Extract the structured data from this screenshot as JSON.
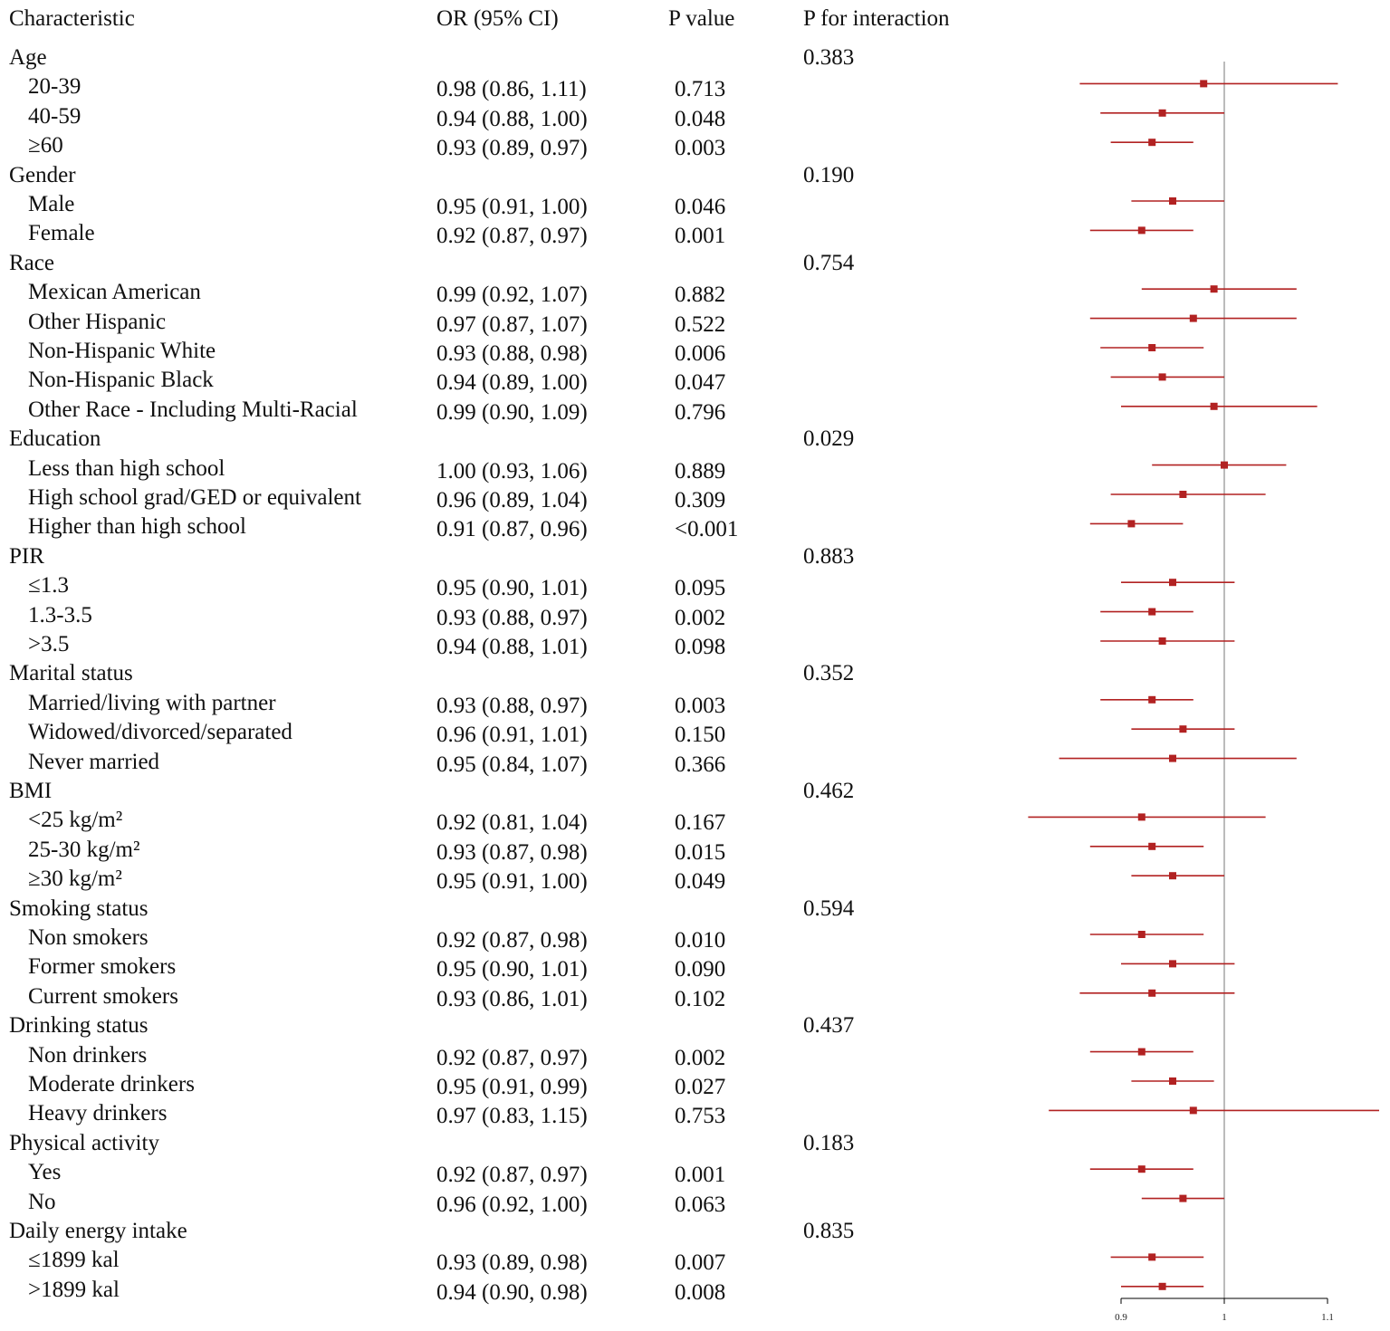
{
  "headers": {
    "characteristic": "Characteristic",
    "or_ci": "OR (95% CI)",
    "p_value": "P value",
    "p_interaction": "P for interaction"
  },
  "colors": {
    "marker": "#B22222",
    "refline": "#BBBBBB",
    "axis": "#000000"
  },
  "chart_data": {
    "type": "forest",
    "title": "",
    "xlabel": "",
    "ylabel": "",
    "xlim": [
      0.9,
      1.1
    ],
    "xticks": [
      "0.9",
      "1",
      "1.1"
    ],
    "reference_line": 1,
    "rows": [
      {
        "type": "group",
        "label": "Age",
        "p_interaction": "0.383"
      },
      {
        "type": "item",
        "label": "20-39",
        "or_text": "0.98 (0.86, 1.11)",
        "p_text": "0.713",
        "or": 0.98,
        "lo": 0.86,
        "hi": 1.11
      },
      {
        "type": "item",
        "label": "40-59",
        "or_text": "0.94 (0.88, 1.00)",
        "p_text": "0.048",
        "or": 0.94,
        "lo": 0.88,
        "hi": 1.0
      },
      {
        "type": "item",
        "label": "≥60",
        "or_text": "0.93 (0.89, 0.97)",
        "p_text": "0.003",
        "or": 0.93,
        "lo": 0.89,
        "hi": 0.97
      },
      {
        "type": "group",
        "label": "Gender",
        "p_interaction": "0.190"
      },
      {
        "type": "item",
        "label": "Male",
        "or_text": "0.95 (0.91, 1.00)",
        "p_text": "0.046",
        "or": 0.95,
        "lo": 0.91,
        "hi": 1.0
      },
      {
        "type": "item",
        "label": "Female",
        "or_text": "0.92 (0.87, 0.97)",
        "p_text": "0.001",
        "or": 0.92,
        "lo": 0.87,
        "hi": 0.97
      },
      {
        "type": "group",
        "label": "Race",
        "p_interaction": "0.754"
      },
      {
        "type": "item",
        "label": "Mexican American",
        "or_text": "0.99 (0.92, 1.07)",
        "p_text": "0.882",
        "or": 0.99,
        "lo": 0.92,
        "hi": 1.07
      },
      {
        "type": "item",
        "label": "Other Hispanic",
        "or_text": "0.97 (0.87, 1.07)",
        "p_text": "0.522",
        "or": 0.97,
        "lo": 0.87,
        "hi": 1.07
      },
      {
        "type": "item",
        "label": "Non-Hispanic White",
        "or_text": "0.93 (0.88, 0.98)",
        "p_text": "0.006",
        "or": 0.93,
        "lo": 0.88,
        "hi": 0.98
      },
      {
        "type": "item",
        "label": "Non-Hispanic Black",
        "or_text": "0.94 (0.89, 1.00)",
        "p_text": "0.047",
        "or": 0.94,
        "lo": 0.89,
        "hi": 1.0
      },
      {
        "type": "item",
        "label": "Other Race - Including Multi-Racial",
        "or_text": "0.99 (0.90, 1.09)",
        "p_text": "0.796",
        "or": 0.99,
        "lo": 0.9,
        "hi": 1.09
      },
      {
        "type": "group",
        "label": "Education",
        "p_interaction": "0.029"
      },
      {
        "type": "item",
        "label": "Less than high school",
        "or_text": "1.00 (0.93, 1.06)",
        "p_text": "0.889",
        "or": 1.0,
        "lo": 0.93,
        "hi": 1.06
      },
      {
        "type": "item",
        "label": "High school grad/GED or equivalent",
        "or_text": "0.96 (0.89, 1.04)",
        "p_text": "0.309",
        "or": 0.96,
        "lo": 0.89,
        "hi": 1.04
      },
      {
        "type": "item",
        "label": "Higher than high school",
        "or_text": "0.91 (0.87, 0.96)",
        "p_text": "<0.001",
        "or": 0.91,
        "lo": 0.87,
        "hi": 0.96
      },
      {
        "type": "group",
        "label": "PIR",
        "p_interaction": "0.883"
      },
      {
        "type": "item",
        "label": "≤1.3",
        "or_text": "0.95 (0.90, 1.01)",
        "p_text": "0.095",
        "or": 0.95,
        "lo": 0.9,
        "hi": 1.01
      },
      {
        "type": "item",
        "label": "1.3-3.5",
        "or_text": "0.93 (0.88, 0.97)",
        "p_text": "0.002",
        "or": 0.93,
        "lo": 0.88,
        "hi": 0.97
      },
      {
        "type": "item",
        "label": ">3.5",
        "or_text": "0.94 (0.88, 1.01)",
        "p_text": "0.098",
        "or": 0.94,
        "lo": 0.88,
        "hi": 1.01
      },
      {
        "type": "group",
        "label": "Marital status",
        "p_interaction": "0.352"
      },
      {
        "type": "item",
        "label": "Married/living with partner",
        "or_text": "0.93 (0.88, 0.97)",
        "p_text": "0.003",
        "or": 0.93,
        "lo": 0.88,
        "hi": 0.97
      },
      {
        "type": "item",
        "label": "Widowed/divorced/separated",
        "or_text": "0.96 (0.91, 1.01)",
        "p_text": "0.150",
        "or": 0.96,
        "lo": 0.91,
        "hi": 1.01
      },
      {
        "type": "item",
        "label": "Never married",
        "or_text": "0.95 (0.84, 1.07)",
        "p_text": "0.366",
        "or": 0.95,
        "lo": 0.84,
        "hi": 1.07
      },
      {
        "type": "group",
        "label": "BMI",
        "p_interaction": "0.462"
      },
      {
        "type": "item",
        "label": "<25 kg/m²",
        "or_text": "0.92 (0.81, 1.04)",
        "p_text": "0.167",
        "or": 0.92,
        "lo": 0.81,
        "hi": 1.04
      },
      {
        "type": "item",
        "label": "25-30 kg/m²",
        "or_text": "0.93 (0.87, 0.98)",
        "p_text": "0.015",
        "or": 0.93,
        "lo": 0.87,
        "hi": 0.98
      },
      {
        "type": "item",
        "label": "≥30 kg/m²",
        "or_text": "0.95 (0.91, 1.00)",
        "p_text": "0.049",
        "or": 0.95,
        "lo": 0.91,
        "hi": 1.0
      },
      {
        "type": "group",
        "label": "Smoking status",
        "p_interaction": "0.594"
      },
      {
        "type": "item",
        "label": "Non smokers",
        "or_text": "0.92 (0.87, 0.98)",
        "p_text": "0.010",
        "or": 0.92,
        "lo": 0.87,
        "hi": 0.98
      },
      {
        "type": "item",
        "label": "Former smokers",
        "or_text": "0.95 (0.90, 1.01)",
        "p_text": "0.090",
        "or": 0.95,
        "lo": 0.9,
        "hi": 1.01
      },
      {
        "type": "item",
        "label": "Current smokers",
        "or_text": "0.93 (0.86, 1.01)",
        "p_text": "0.102",
        "or": 0.93,
        "lo": 0.86,
        "hi": 1.01
      },
      {
        "type": "group",
        "label": "Drinking status",
        "p_interaction": "0.437"
      },
      {
        "type": "item",
        "label": "Non drinkers",
        "or_text": "0.92 (0.87, 0.97)",
        "p_text": "0.002",
        "or": 0.92,
        "lo": 0.87,
        "hi": 0.97
      },
      {
        "type": "item",
        "label": "Moderate drinkers",
        "or_text": "0.95 (0.91, 0.99)",
        "p_text": "0.027",
        "or": 0.95,
        "lo": 0.91,
        "hi": 0.99
      },
      {
        "type": "item",
        "label": "Heavy drinkers",
        "or_text": "0.97 (0.83, 1.15)",
        "p_text": "0.753",
        "or": 0.97,
        "lo": 0.83,
        "hi": 1.15
      },
      {
        "type": "group",
        "label": "Physical activity",
        "p_interaction": "0.183"
      },
      {
        "type": "item",
        "label": "Yes",
        "or_text": "0.92 (0.87, 0.97)",
        "p_text": "0.001",
        "or": 0.92,
        "lo": 0.87,
        "hi": 0.97
      },
      {
        "type": "item",
        "label": "No",
        "or_text": "0.96 (0.92, 1.00)",
        "p_text": "0.063",
        "or": 0.96,
        "lo": 0.92,
        "hi": 1.0
      },
      {
        "type": "group",
        "label": "Daily energy intake",
        "p_interaction": "0.835"
      },
      {
        "type": "item",
        "label": "≤1899 kal",
        "or_text": "0.93 (0.89, 0.98)",
        "p_text": "0.007",
        "or": 0.93,
        "lo": 0.89,
        "hi": 0.98
      },
      {
        "type": "item",
        "label": ">1899 kal",
        "or_text": "0.94 (0.90, 0.98)",
        "p_text": "0.008",
        "or": 0.94,
        "lo": 0.9,
        "hi": 0.98
      }
    ]
  }
}
